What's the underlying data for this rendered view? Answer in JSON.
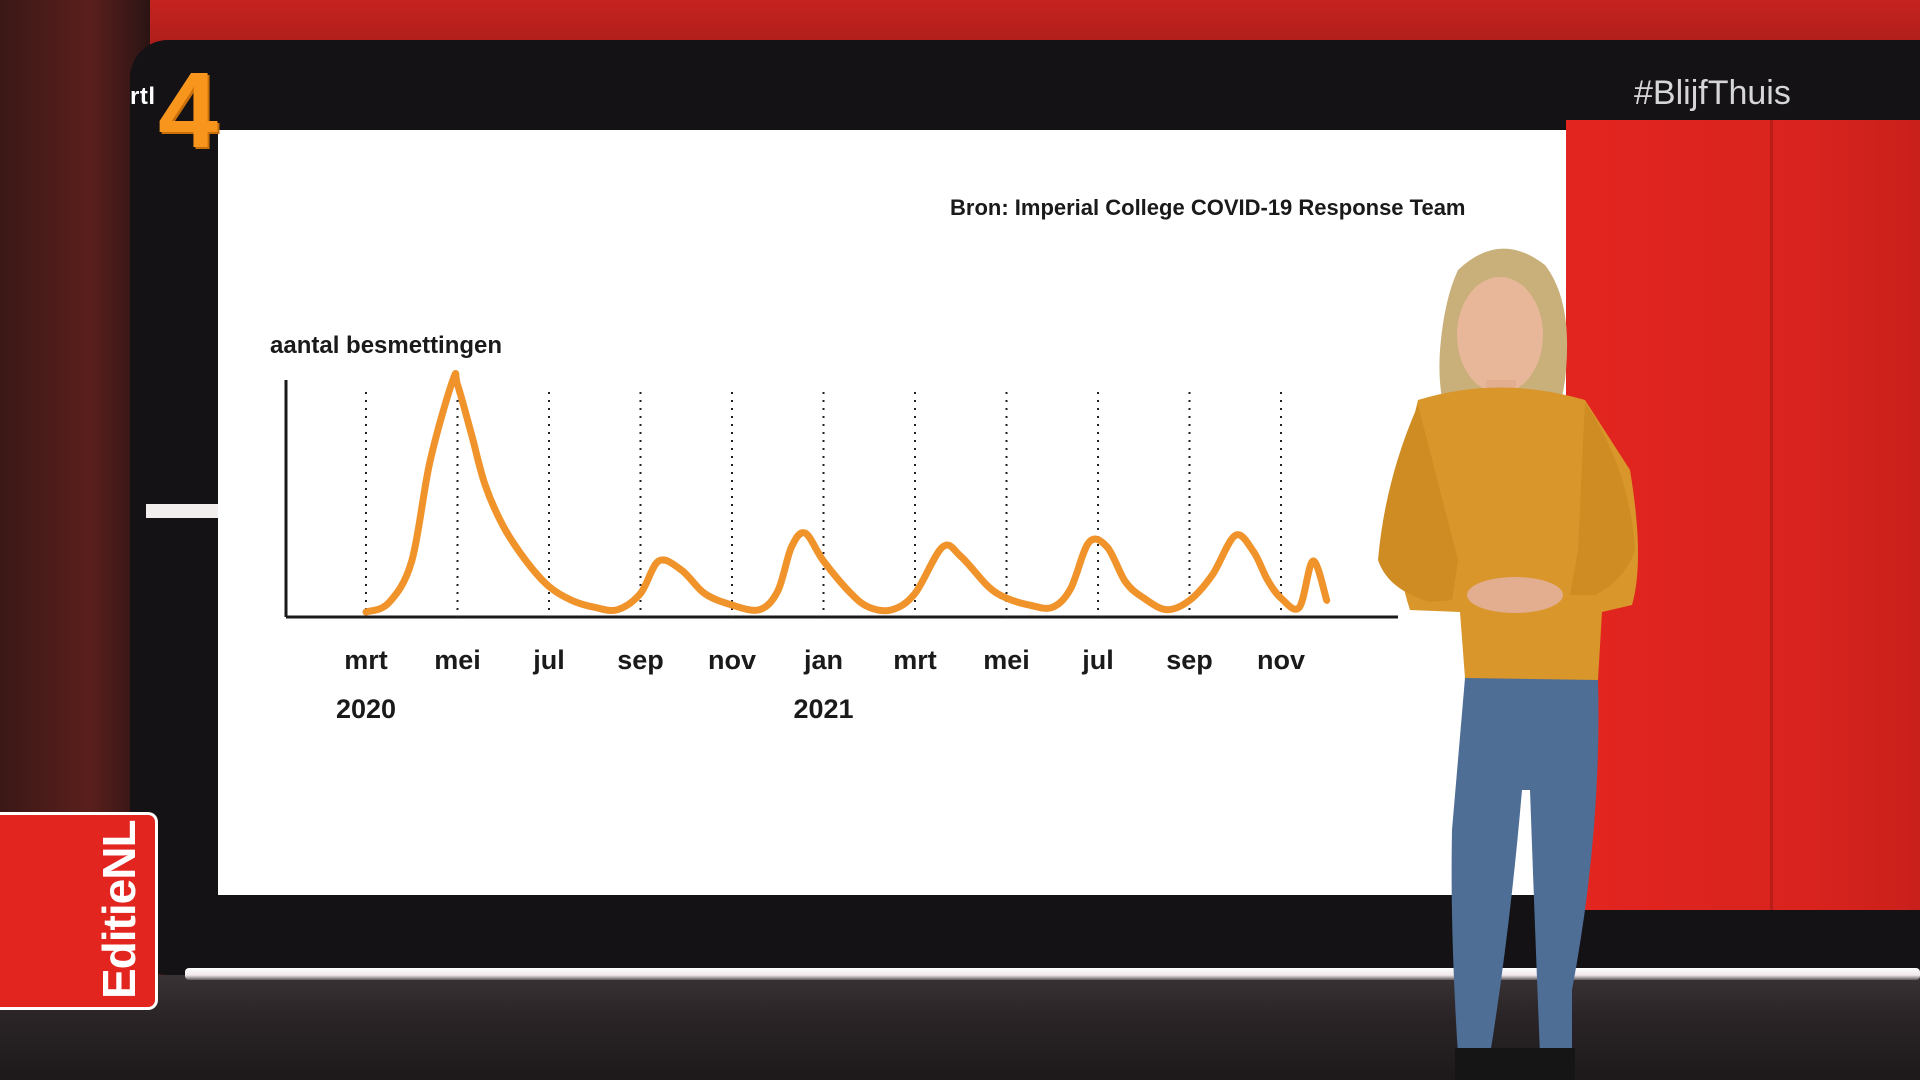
{
  "brand": {
    "channel_logo_text": "rtl",
    "channel_number": "4",
    "hashtag": "#BlijfThuis",
    "show_name": "EditieNL"
  },
  "colors": {
    "accent_red": "#e3251f",
    "line_orange": "#f0932b",
    "logo_orange": "#f7951d"
  },
  "chart_data": {
    "type": "line",
    "source": "Bron: Imperial College COVID-19 Response Team",
    "ylabel": "aantal besmettingen",
    "xlabel": "",
    "tick_labels": [
      "mrt",
      "mei",
      "jul",
      "sep",
      "nov",
      "jan",
      "mrt",
      "mei",
      "jul",
      "sep",
      "nov"
    ],
    "year_labels": [
      {
        "label": "2020",
        "tick_index": 0
      },
      {
        "label": "2021",
        "tick_index": 5
      }
    ],
    "grid": "vertical dotted lines at each tick",
    "y_ticks_shown": false,
    "xlim": [
      0,
      21
    ],
    "ylim": [
      0,
      100
    ],
    "series": [
      {
        "x": [
          0,
          0.5,
          1.0,
          1.4,
          1.9,
          2.0,
          2.3,
          2.6,
          3.0,
          3.5,
          4.0,
          4.5,
          5.0,
          5.5,
          6.0,
          6.4,
          6.9,
          7.4,
          8.0,
          8.6,
          9.0,
          9.3,
          9.6,
          10.0,
          10.6,
          11.0,
          11.5,
          12.0,
          12.6,
          13.0,
          13.6,
          14.0,
          14.5,
          15.0,
          15.4,
          15.8,
          16.2,
          16.6,
          17.0,
          17.5,
          18.0,
          18.5,
          19.0,
          19.4,
          19.7,
          20.0,
          20.4,
          20.7,
          21.0
        ],
        "y": [
          0,
          4,
          22,
          65,
          100,
          98,
          77,
          55,
          37,
          22,
          11,
          5,
          2,
          1,
          8,
          22,
          18,
          8,
          3,
          1,
          9,
          28,
          34,
          22,
          8,
          2,
          1,
          8,
          28,
          24,
          11,
          6,
          3,
          2,
          10,
          30,
          28,
          13,
          6,
          1,
          5,
          16,
          33,
          26,
          14,
          6,
          2,
          22,
          5
        ]
      }
    ]
  }
}
